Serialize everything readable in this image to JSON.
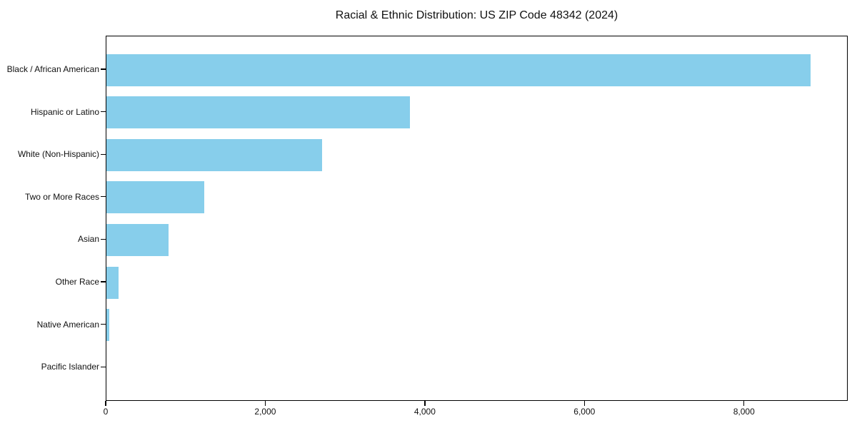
{
  "chart_data": {
    "type": "bar",
    "orientation": "horizontal",
    "title": "Racial & Ethnic Distribution: US ZIP Code 48342 (2024)",
    "categories": [
      "Black / African American",
      "Hispanic or Latino",
      "White (Non-Hispanic)",
      "Two or More Races",
      "Asian",
      "Other Race",
      "Native American",
      "Pacific Islander"
    ],
    "values": [
      8840,
      3810,
      2710,
      1230,
      780,
      150,
      35,
      0
    ],
    "xlabel": "",
    "ylabel": "",
    "xlim": [
      0,
      9300
    ],
    "xticks": [
      0,
      2000,
      4000,
      6000,
      8000
    ],
    "xtick_labels": [
      "0",
      "2,000",
      "4,000",
      "6,000",
      "8,000"
    ],
    "bar_color": "#87CEEB",
    "grid": false,
    "legend": null
  }
}
